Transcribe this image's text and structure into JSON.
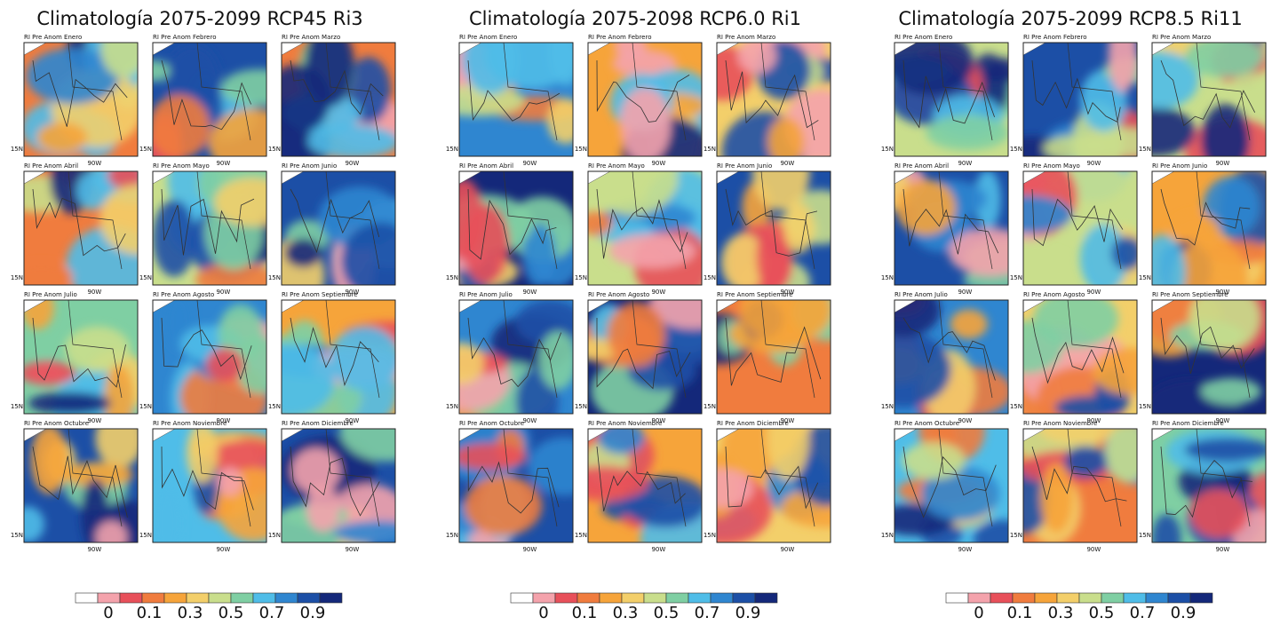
{
  "panels": [
    {
      "title": "Climatología 2075-2099 RCP45 Ri3",
      "maps": [
        "RI Pre Anom  Enero",
        "RI Pre Anom  Febrero",
        "RI Pre Anom  Marzo",
        "RI Pre Anom  Abril",
        "RI Pre Anom  Mayo",
        "RI Pre Anom  Junio",
        "RI Pre Anom  Julio",
        "RI Pre Anom  Agosto",
        "RI Pre Anom  Septiembre",
        "RI Pre Anom  Octubre",
        "RI Pre Anom  Noviembre",
        "RI Pre Anom  Diciembre"
      ]
    },
    {
      "title": "Climatología 2075-2098 RCP6.0 Ri1",
      "maps": [
        "RI Pre Anom  Enero",
        "RI Pre Anom  Febrero",
        "RI Pre Anom  Marzo",
        "RI Pre Anom  Abril",
        "RI Pre Anom  Mayo",
        "RI Pre Anom  Junio",
        "RI Pre Anom  Julio",
        "RI Pre Anom  Agosto",
        "RI Pre Anom  Septiembre",
        "RI Pre Anom  Octubre",
        "RI Pre Anom  Noviembre",
        "RI Pre Anom  Diciembre"
      ]
    },
    {
      "title": "Climatología 2075-2099 RCP8.5 Ri11",
      "maps": [
        "RI Pre Anom  Enero",
        "RI Pre Anom  Febrero",
        "RI Pre Anom  Marzo",
        "RI Pre Anom  Abril",
        "RI Pre Anom  Mayo",
        "RI Pre Anom  Junio",
        "RI Pre Anom  Julio",
        "RI Pre Anom  Agosto",
        "RI Pre Anom  Septiembre",
        "RI Pre Anom  Octubre",
        "RI Pre Anom  Noviembre",
        "RI Pre Anom  Diciembre"
      ]
    }
  ],
  "lat_label": "15N",
  "lon_label": "90W",
  "colorbar": {
    "colors": [
      "#ffffff",
      "#f4a3ac",
      "#e8505a",
      "#f07c3e",
      "#f6a43a",
      "#f3cf6a",
      "#c9de8c",
      "#7fcfa3",
      "#4fbde8",
      "#2f86d0",
      "#1c4fa6",
      "#14287a"
    ],
    "ticks": [
      "0",
      "0.1",
      "0.3",
      "0.5",
      "0.7",
      "0.9"
    ]
  }
}
